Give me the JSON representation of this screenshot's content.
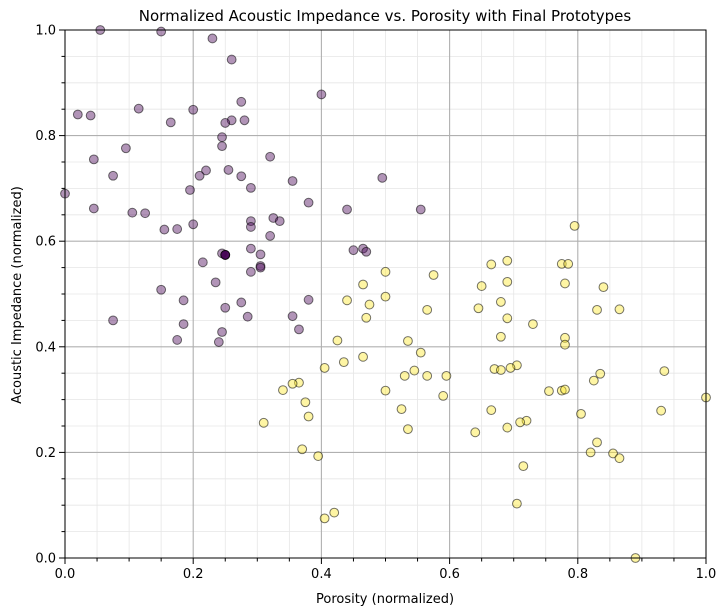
{
  "chart_data": {
    "type": "scatter",
    "title": "Normalized Acoustic Impedance vs. Porosity with Final Prototypes",
    "xlabel": "Porosity (normalized)",
    "ylabel": "Acoustic Impedance (normalized)",
    "xlim": [
      0,
      1
    ],
    "ylim": [
      0,
      1
    ],
    "x_ticks": [
      "0.0",
      "0.2",
      "0.4",
      "0.6",
      "0.8",
      "1.0"
    ],
    "y_ticks": [
      "0.0",
      "0.2",
      "0.4",
      "0.6",
      "0.8",
      "1.0"
    ],
    "grid": "major and minor",
    "legend": "none",
    "series": [
      {
        "color": "#440154",
        "points": [
          [
            0.055,
            1.0
          ],
          [
            0.15,
            0.997
          ],
          [
            0.23,
            0.984
          ],
          [
            0.26,
            0.944
          ],
          [
            0.4,
            0.878
          ],
          [
            0.275,
            0.864
          ],
          [
            0.02,
            0.84
          ],
          [
            0.04,
            0.838
          ],
          [
            0.115,
            0.851
          ],
          [
            0.2,
            0.849
          ],
          [
            0.26,
            0.829
          ],
          [
            0.28,
            0.829
          ],
          [
            0.165,
            0.825
          ],
          [
            0.25,
            0.824
          ],
          [
            0.245,
            0.797
          ],
          [
            0.245,
            0.78
          ],
          [
            0.095,
            0.776
          ],
          [
            0.045,
            0.755
          ],
          [
            0.32,
            0.76
          ],
          [
            0.22,
            0.734
          ],
          [
            0.255,
            0.735
          ],
          [
            0.21,
            0.724
          ],
          [
            0.075,
            0.724
          ],
          [
            0.275,
            0.723
          ],
          [
            0.495,
            0.72
          ],
          [
            0.355,
            0.714
          ],
          [
            0.195,
            0.697
          ],
          [
            0.29,
            0.701
          ],
          [
            0.0,
            0.69
          ],
          [
            0.38,
            0.673
          ],
          [
            0.045,
            0.662
          ],
          [
            0.44,
            0.66
          ],
          [
            0.555,
            0.66
          ],
          [
            0.105,
            0.654
          ],
          [
            0.125,
            0.653
          ],
          [
            0.325,
            0.644
          ],
          [
            0.29,
            0.638
          ],
          [
            0.335,
            0.638
          ],
          [
            0.2,
            0.632
          ],
          [
            0.29,
            0.627
          ],
          [
            0.155,
            0.622
          ],
          [
            0.175,
            0.623
          ],
          [
            0.32,
            0.61
          ],
          [
            0.45,
            0.583
          ],
          [
            0.465,
            0.586
          ],
          [
            0.47,
            0.58
          ],
          [
            0.29,
            0.586
          ],
          [
            0.245,
            0.577
          ],
          [
            0.25,
            0.574
          ],
          [
            0.25,
            0.574
          ],
          [
            0.305,
            0.575
          ],
          [
            0.215,
            0.56
          ],
          [
            0.305,
            0.553
          ],
          [
            0.305,
            0.55
          ],
          [
            0.29,
            0.542
          ],
          [
            0.235,
            0.522
          ],
          [
            0.15,
            0.508
          ],
          [
            0.185,
            0.488
          ],
          [
            0.275,
            0.484
          ],
          [
            0.38,
            0.489
          ],
          [
            0.25,
            0.474
          ],
          [
            0.355,
            0.458
          ],
          [
            0.285,
            0.457
          ],
          [
            0.075,
            0.45
          ],
          [
            0.185,
            0.443
          ],
          [
            0.365,
            0.433
          ],
          [
            0.245,
            0.428
          ],
          [
            0.175,
            0.413
          ],
          [
            0.24,
            0.409
          ]
        ]
      },
      {
        "color": "#fde725",
        "points": [
          [
            0.795,
            0.629
          ],
          [
            0.69,
            0.563
          ],
          [
            0.665,
            0.556
          ],
          [
            0.775,
            0.557
          ],
          [
            0.785,
            0.557
          ],
          [
            0.575,
            0.536
          ],
          [
            0.5,
            0.542
          ],
          [
            0.69,
            0.523
          ],
          [
            0.78,
            0.52
          ],
          [
            0.465,
            0.518
          ],
          [
            0.65,
            0.515
          ],
          [
            0.84,
            0.513
          ],
          [
            0.5,
            0.495
          ],
          [
            0.44,
            0.488
          ],
          [
            0.68,
            0.485
          ],
          [
            0.475,
            0.48
          ],
          [
            0.645,
            0.473
          ],
          [
            0.565,
            0.47
          ],
          [
            0.83,
            0.47
          ],
          [
            0.865,
            0.471
          ],
          [
            0.47,
            0.455
          ],
          [
            0.69,
            0.454
          ],
          [
            0.73,
            0.443
          ],
          [
            0.68,
            0.419
          ],
          [
            0.78,
            0.417
          ],
          [
            0.425,
            0.412
          ],
          [
            0.535,
            0.411
          ],
          [
            0.78,
            0.404
          ],
          [
            0.555,
            0.389
          ],
          [
            0.465,
            0.381
          ],
          [
            0.435,
            0.371
          ],
          [
            0.705,
            0.365
          ],
          [
            0.405,
            0.36
          ],
          [
            0.67,
            0.358
          ],
          [
            0.695,
            0.36
          ],
          [
            0.68,
            0.356
          ],
          [
            0.545,
            0.355
          ],
          [
            0.935,
            0.354
          ],
          [
            0.835,
            0.349
          ],
          [
            0.53,
            0.345
          ],
          [
            0.565,
            0.345
          ],
          [
            0.595,
            0.345
          ],
          [
            0.825,
            0.336
          ],
          [
            0.365,
            0.332
          ],
          [
            0.355,
            0.33
          ],
          [
            0.34,
            0.318
          ],
          [
            0.5,
            0.317
          ],
          [
            0.755,
            0.316
          ],
          [
            0.775,
            0.317
          ],
          [
            0.78,
            0.319
          ],
          [
            0.59,
            0.307
          ],
          [
            1.0,
            0.304
          ],
          [
            0.375,
            0.295
          ],
          [
            0.525,
            0.282
          ],
          [
            0.665,
            0.28
          ],
          [
            0.93,
            0.279
          ],
          [
            0.805,
            0.273
          ],
          [
            0.38,
            0.268
          ],
          [
            0.72,
            0.26
          ],
          [
            0.71,
            0.257
          ],
          [
            0.31,
            0.256
          ],
          [
            0.69,
            0.247
          ],
          [
            0.535,
            0.244
          ],
          [
            0.64,
            0.238
          ],
          [
            0.83,
            0.219
          ],
          [
            0.37,
            0.206
          ],
          [
            0.82,
            0.2
          ],
          [
            0.855,
            0.198
          ],
          [
            0.395,
            0.193
          ],
          [
            0.865,
            0.189
          ],
          [
            0.715,
            0.174
          ],
          [
            0.705,
            0.103
          ],
          [
            0.42,
            0.086
          ],
          [
            0.405,
            0.075
          ],
          [
            0.89,
            0.0
          ]
        ]
      }
    ],
    "highlighted_prototypes": [
      {
        "color": "#440154",
        "x": 0.25,
        "y": 0.574
      }
    ]
  }
}
